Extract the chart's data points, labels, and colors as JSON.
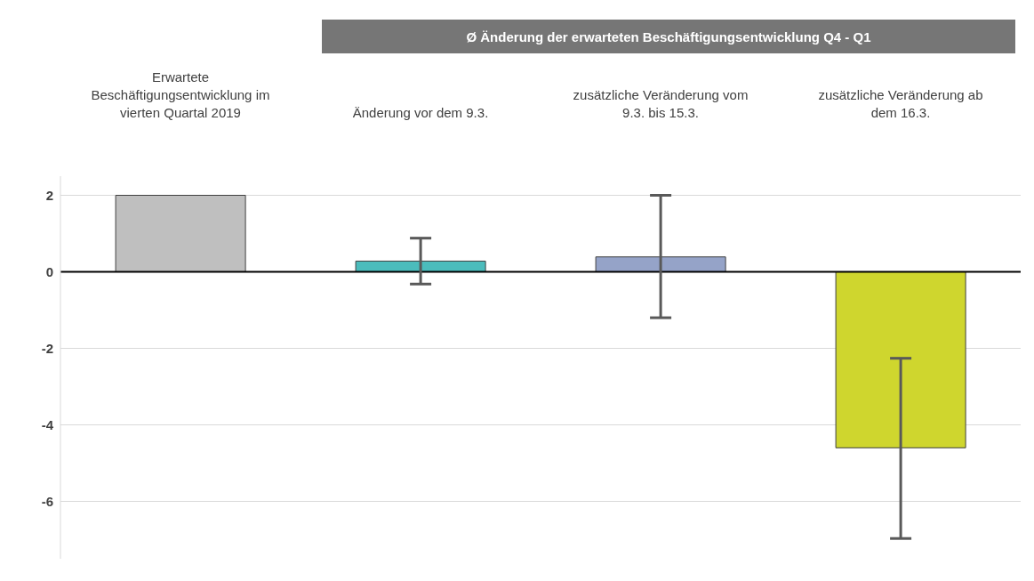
{
  "chart_data": {
    "type": "bar",
    "annotations": [
      "Ø Änderung der erwarteten Beschäftigungsentwicklung Q4 - Q1"
    ],
    "categories": [
      "Erwartete Beschäftigungsentwicklung im vierten Quartal 2019",
      "Änderung vor dem 9.3.",
      "zusätzliche Veränderung vom 9.3. bis 15.3.",
      "zusätzliche Veränderung ab dem 16.3."
    ],
    "values": [
      2.0,
      0.28,
      0.39,
      -4.6
    ],
    "colors": [
      "#bfbfbf",
      "#4bbcbc",
      "#95a3c8",
      "#cfd62e"
    ],
    "errors": [
      null,
      [
        -0.32,
        0.88
      ],
      [
        -1.2,
        2.0
      ],
      [
        -6.97,
        -2.26
      ]
    ],
    "ylim": [
      -7.5,
      2.5
    ],
    "yticks": [
      -6,
      -4,
      -2,
      0,
      2
    ],
    "ref_lines": [
      {
        "axis": "y",
        "value": 0,
        "color": "#000000"
      }
    ],
    "grid": "y",
    "legend": false
  }
}
